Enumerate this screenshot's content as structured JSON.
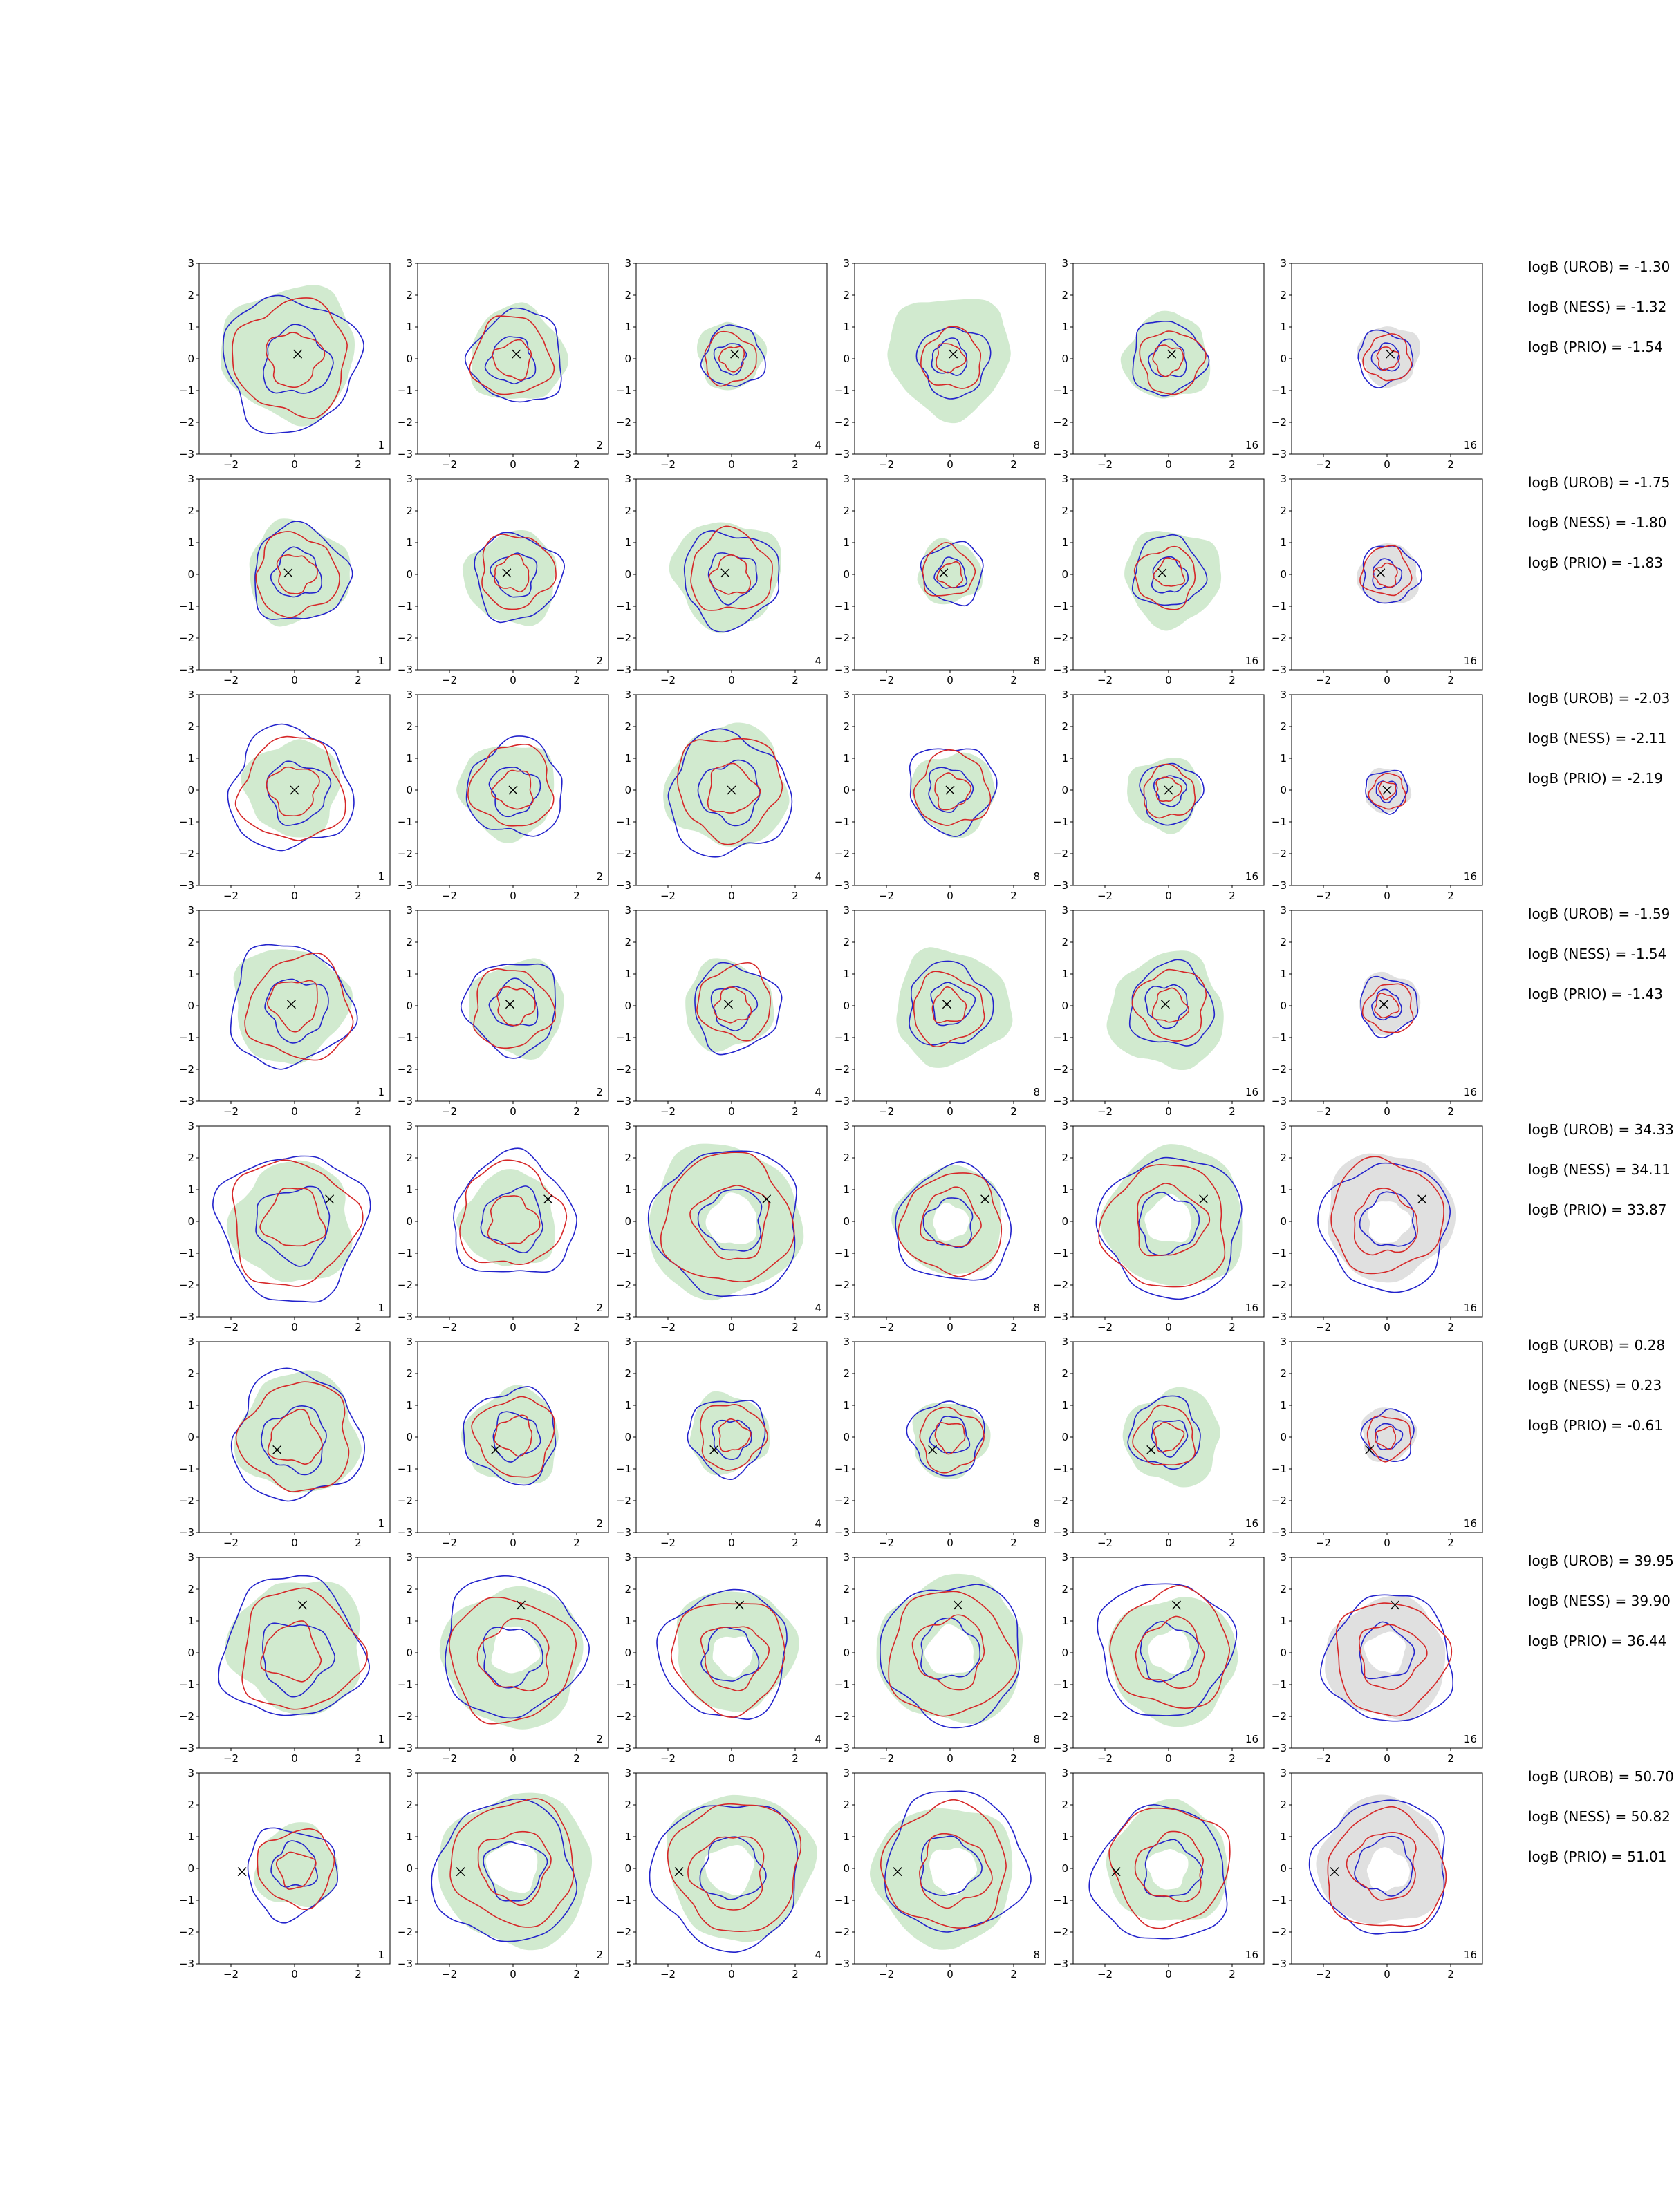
{
  "page": {
    "background": "#ffffff"
  },
  "chart_data": {
    "type": "contour_grid",
    "description": "8x6 grid of 2D posterior contour panels; blue and red KDE contours over shaded green/gray density fills, true parameter marked with a black x; per-row logB annotations at right",
    "nrows": 8,
    "ncols": 6,
    "panel_corner_labels": [
      "1",
      "2",
      "4",
      "8",
      "16",
      "16"
    ],
    "axes": {
      "xlim": [
        -3,
        3
      ],
      "ylim": [
        -3,
        3
      ],
      "xticks": [
        -2,
        0,
        2
      ],
      "xtick_labels": [
        "−2",
        "0",
        "2"
      ],
      "yticks": [
        3,
        2,
        1,
        0,
        -1,
        -2,
        -3
      ],
      "ytick_labels": [
        "3",
        "2",
        "1",
        "0",
        "−1",
        "−2",
        "−3"
      ]
    },
    "colors": {
      "fill_green": "#c9e6c7",
      "fill_gray": "#dadada",
      "contour_blue": "#2323cc",
      "contour_red": "#d62728",
      "marker": "#000000",
      "axis": "#000000",
      "background": "#ffffff"
    },
    "rows": [
      {
        "logB": {
          "UROB": -1.3,
          "NESS": -1.32,
          "PRIO": -1.54
        },
        "annotation_lines": [
          "logB (UROB) = -1.30",
          "logB (NESS) = -1.32",
          "logB (PRIO) = -1.54"
        ],
        "marker_xy": [
          0.1,
          0.15
        ],
        "panel_types": [
          "blob",
          "blob",
          "blob",
          "blob",
          "blob",
          "blob"
        ],
        "fill_scales": [
          2.1,
          1.5,
          1.05,
          1.9,
          1.35,
          0.95
        ],
        "contour_scales": [
          2.1,
          1.45,
          0.95,
          1.1,
          1.15,
          0.85
        ],
        "hole_scale": 0.35
      },
      {
        "logB": {
          "UROB": -1.75,
          "NESS": -1.8,
          "PRIO": -1.83
        },
        "annotation_lines": [
          "logB (UROB) = -1.75",
          "logB (NESS) = -1.80",
          "logB (PRIO) = -1.83"
        ],
        "marker_xy": [
          -0.2,
          0.05
        ],
        "panel_types": [
          "blob",
          "blob",
          "blob",
          "blob",
          "blob",
          "blob"
        ],
        "fill_scales": [
          1.6,
          1.45,
          1.7,
          1.0,
          1.5,
          0.95
        ],
        "contour_scales": [
          1.5,
          1.35,
          1.5,
          0.95,
          1.1,
          0.9
        ],
        "hole_scale": 0.35
      },
      {
        "logB": {
          "UROB": -2.03,
          "NESS": -2.11,
          "PRIO": -2.19
        },
        "annotation_lines": [
          "logB (UROB) = -2.03",
          "logB (NESS) = -2.11",
          "logB (PRIO) = -2.19"
        ],
        "marker_xy": [
          0.0,
          0.0
        ],
        "panel_types": [
          "blob",
          "blob",
          "blob",
          "blob",
          "blob",
          "blob"
        ],
        "fill_scales": [
          1.5,
          1.5,
          1.9,
          1.3,
          1.15,
          0.7
        ],
        "contour_scales": [
          1.9,
          1.5,
          1.9,
          1.35,
          0.95,
          0.65
        ],
        "hole_scale": 0.35
      },
      {
        "logB": {
          "UROB": -1.59,
          "NESS": -1.54,
          "PRIO": -1.43
        },
        "annotation_lines": [
          "logB (UROB) = -1.59",
          "logB (NESS) = -1.54",
          "logB (PRIO) = -1.43"
        ],
        "marker_xy": [
          -0.1,
          0.05
        ],
        "panel_types": [
          "blob",
          "blob",
          "blob",
          "blob",
          "blob",
          "blob"
        ],
        "fill_scales": [
          1.8,
          1.5,
          1.4,
          1.8,
          1.8,
          0.95
        ],
        "contour_scales": [
          1.9,
          1.45,
          1.35,
          1.3,
          1.3,
          0.9
        ],
        "hole_scale": 0.35
      },
      {
        "logB": {
          "UROB": 34.33,
          "NESS": 34.11,
          "PRIO": 33.87
        },
        "annotation_lines": [
          "logB (UROB) = 34.33",
          "logB (NESS) = 34.11",
          "logB (PRIO) = 33.87"
        ],
        "marker_xy": [
          1.1,
          0.7
        ],
        "panel_types": [
          "blob",
          "blob",
          "ring",
          "ring",
          "ring",
          "ring"
        ],
        "fill_scales": [
          1.9,
          1.5,
          2.4,
          1.7,
          2.2,
          2.0
        ],
        "contour_scales": [
          2.3,
          1.9,
          2.3,
          1.8,
          2.2,
          2.0
        ],
        "hole_scale": 0.33
      },
      {
        "logB": {
          "UROB": 0.28,
          "NESS": 0.23,
          "PRIO": -0.61
        },
        "annotation_lines": [
          "logB (UROB) = 0.28",
          "logB (NESS) = 0.23",
          "logB (PRIO) = -0.61"
        ],
        "marker_xy": [
          -0.55,
          -0.4
        ],
        "panel_types": [
          "blob",
          "blob",
          "blob",
          "blob",
          "blob",
          "blob"
        ],
        "fill_scales": [
          1.9,
          1.5,
          1.25,
          1.2,
          1.5,
          0.85
        ],
        "contour_scales": [
          2.0,
          1.45,
          1.2,
          1.15,
          1.1,
          0.8
        ],
        "hole_scale": 0.35
      },
      {
        "logB": {
          "UROB": 39.95,
          "NESS": 39.9,
          "PRIO": 36.44
        },
        "annotation_lines": [
          "logB (UROB) = 39.95",
          "logB (NESS) = 39.90",
          "logB (PRIO) = 36.44"
        ],
        "marker_xy": [
          0.25,
          1.5
        ],
        "panel_types": [
          "blob",
          "ring",
          "ring",
          "ring",
          "ring",
          "ring"
        ],
        "fill_scales": [
          2.1,
          2.2,
          1.9,
          2.3,
          2.0,
          1.9
        ],
        "contour_scales": [
          2.2,
          2.2,
          2.0,
          2.2,
          2.1,
          2.0
        ],
        "hole_scale": 0.33
      },
      {
        "logB": {
          "UROB": 50.7,
          "NESS": 50.82,
          "PRIO": 51.01
        },
        "annotation_lines": [
          "logB (UROB) = 50.70",
          "logB (NESS) = 50.82",
          "logB (PRIO) = 51.01"
        ],
        "marker_xy": [
          -1.65,
          -0.1
        ],
        "panel_types": [
          "blob",
          "ring",
          "ring",
          "ring",
          "ring",
          "ring"
        ],
        "fill_scales": [
          1.3,
          2.4,
          2.3,
          2.2,
          1.9,
          2.0
        ],
        "contour_scales": [
          1.4,
          2.2,
          2.3,
          2.2,
          2.1,
          2.1
        ],
        "hole_scale": 0.33
      }
    ]
  }
}
